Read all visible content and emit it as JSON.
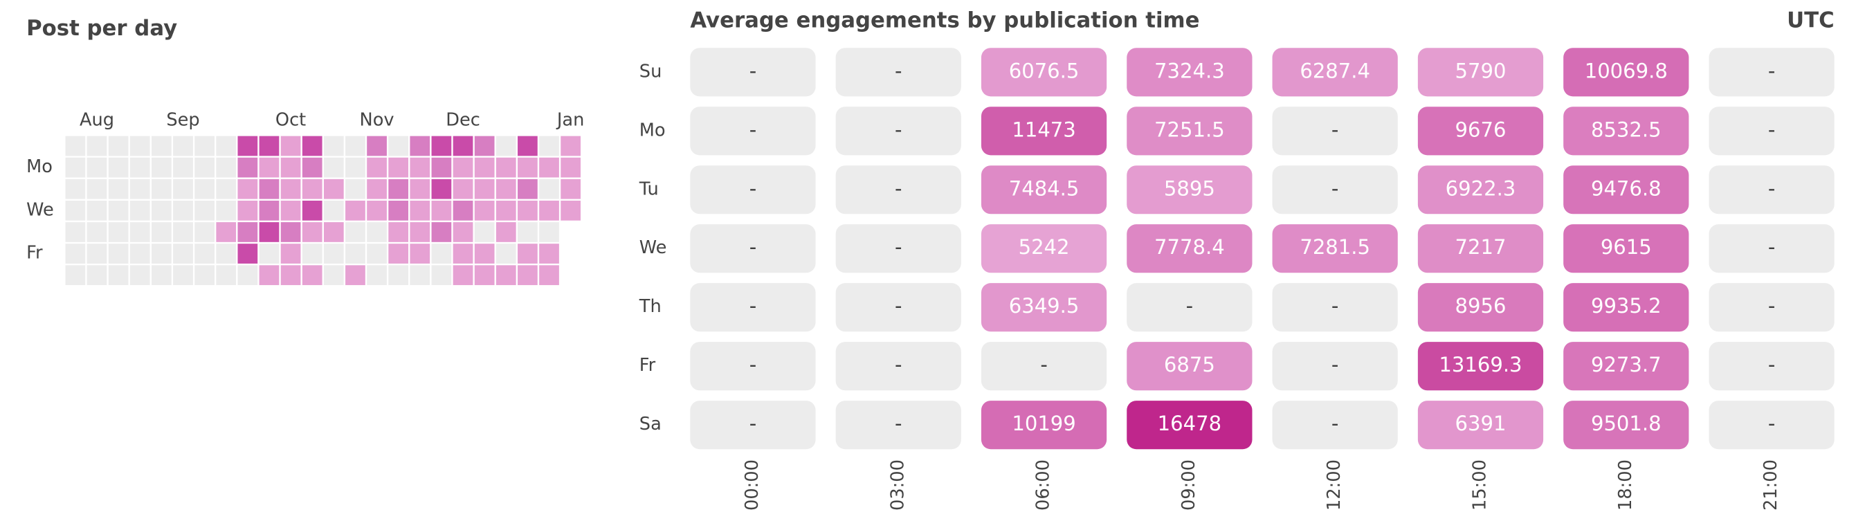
{
  "posts_per_day": {
    "title": "Post per day",
    "weekday_labels": [
      null,
      "Mo",
      null,
      "We",
      null,
      "Fr",
      null
    ],
    "months": [
      {
        "label": "Aug",
        "week": 1
      },
      {
        "label": "Sep",
        "week": 5
      },
      {
        "label": "Oct",
        "week": 10
      },
      {
        "label": "Nov",
        "week": 14
      },
      {
        "label": "Dec",
        "week": 18
      },
      {
        "label": "Jan",
        "week": 23
      }
    ],
    "colors": [
      "#ececec",
      "#e6a1d3",
      "#d77ec2",
      "#c94ba9"
    ],
    "counts": [
      [
        0,
        0,
        0,
        0,
        0,
        0,
        0,
        0,
        3,
        3,
        1,
        3,
        0,
        0,
        2,
        0,
        2,
        3,
        3,
        2,
        0,
        3,
        0,
        1
      ],
      [
        0,
        0,
        0,
        0,
        0,
        0,
        0,
        0,
        2,
        1,
        1,
        2,
        0,
        0,
        1,
        1,
        1,
        2,
        1,
        1,
        1,
        1,
        1,
        1
      ],
      [
        0,
        0,
        0,
        0,
        0,
        0,
        0,
        0,
        1,
        2,
        1,
        1,
        1,
        0,
        1,
        2,
        1,
        3,
        1,
        1,
        1,
        2,
        0,
        1
      ],
      [
        0,
        0,
        0,
        0,
        0,
        0,
        0,
        0,
        1,
        2,
        1,
        3,
        0,
        1,
        1,
        2,
        1,
        1,
        2,
        1,
        1,
        1,
        1,
        1
      ],
      [
        0,
        0,
        0,
        0,
        0,
        0,
        0,
        1,
        2,
        3,
        2,
        1,
        1,
        0,
        0,
        1,
        1,
        2,
        1,
        0,
        1,
        0,
        0,
        null
      ],
      [
        0,
        0,
        0,
        0,
        0,
        0,
        0,
        0,
        3,
        0,
        1,
        0,
        0,
        0,
        0,
        1,
        1,
        0,
        1,
        1,
        0,
        1,
        1,
        null
      ],
      [
        0,
        0,
        0,
        0,
        0,
        0,
        0,
        0,
        0,
        1,
        1,
        1,
        0,
        1,
        0,
        0,
        0,
        0,
        1,
        1,
        1,
        1,
        1,
        null
      ]
    ]
  },
  "engagements": {
    "title": "Average engagements by publication time",
    "timezone": "UTC",
    "rows": [
      "Su",
      "Mo",
      "Tu",
      "We",
      "Th",
      "Fr",
      "Sa"
    ],
    "columns": [
      "00:00",
      "03:00",
      "06:00",
      "09:00",
      "12:00",
      "15:00",
      "18:00",
      "21:00"
    ],
    "missing_label": "-",
    "empty_color": "#ececec",
    "color_low": "#e6a3d4",
    "color_high": "#bf268c",
    "values": [
      [
        null,
        null,
        6076.5,
        7324.3,
        6287.4,
        5790,
        10069.8,
        null
      ],
      [
        null,
        null,
        11473,
        7251.5,
        null,
        9676,
        8532.5,
        null
      ],
      [
        null,
        null,
        7484.5,
        5895,
        null,
        6922.3,
        9476.8,
        null
      ],
      [
        null,
        null,
        5242,
        7778.4,
        7281.5,
        7217,
        9615,
        null
      ],
      [
        null,
        null,
        6349.5,
        null,
        null,
        8956,
        9935.2,
        null
      ],
      [
        null,
        null,
        null,
        6875,
        null,
        13169.3,
        9273.7,
        null
      ],
      [
        null,
        null,
        10199,
        16478,
        null,
        6391,
        9501.8,
        null
      ]
    ]
  }
}
